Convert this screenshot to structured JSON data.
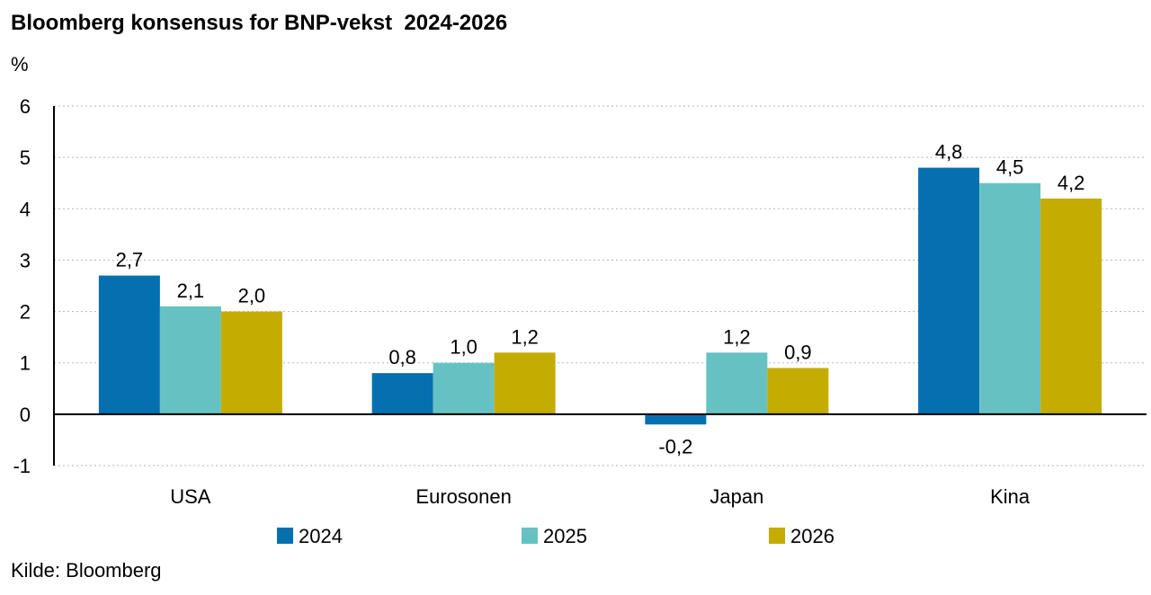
{
  "chart_data": {
    "type": "bar",
    "title": "Bloomberg konsensus for BNP-vekst  2024-2026",
    "ylabel": "%",
    "categories": [
      "USA",
      "Eurosonen",
      "Japan",
      "Kina"
    ],
    "series": [
      {
        "name": "2024",
        "values": [
          2.7,
          0.8,
          -0.2,
          4.8
        ],
        "labels": [
          "2,7",
          "0,8",
          "-0,2",
          "4,8"
        ],
        "color": "#0570b0"
      },
      {
        "name": "2025",
        "values": [
          2.1,
          1.0,
          1.2,
          4.5
        ],
        "labels": [
          "2,1",
          "1,0",
          "1,2",
          "4,5"
        ],
        "color": "#66c2c2"
      },
      {
        "name": "2026",
        "values": [
          2.0,
          1.2,
          0.9,
          4.2
        ],
        "labels": [
          "2,0",
          "1,2",
          "0,9",
          "4,2"
        ],
        "color": "#c4ac00"
      }
    ],
    "yticks": [
      "-1",
      "0",
      "1",
      "2",
      "3",
      "4",
      "5",
      "6"
    ],
    "ylim": [
      -1,
      6
    ],
    "grid": true,
    "legend": "bottom"
  },
  "source": "Kilde: Bloomberg"
}
